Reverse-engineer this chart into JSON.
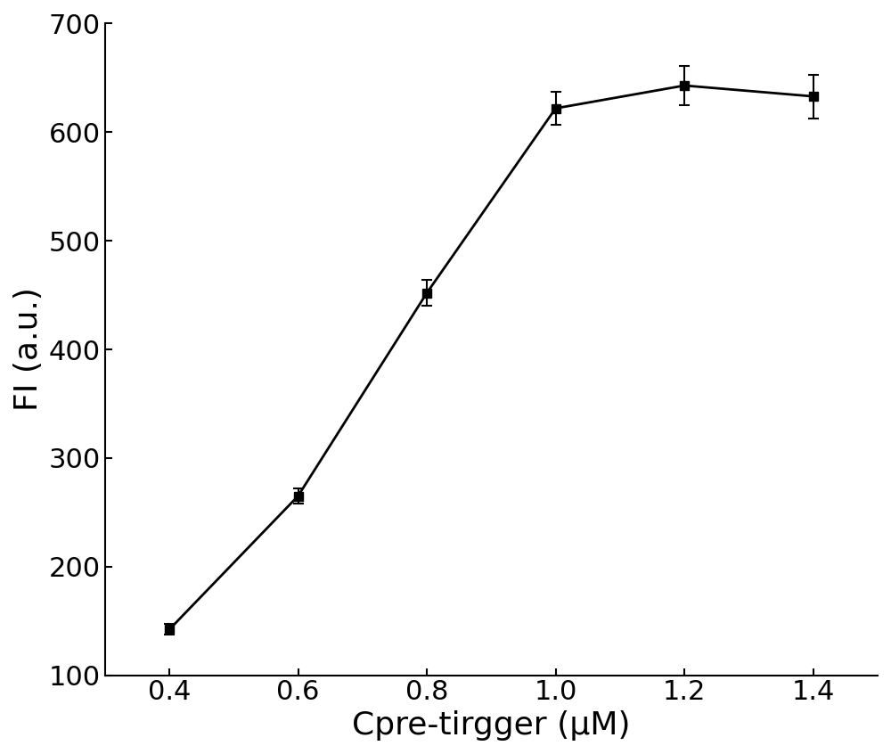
{
  "x": [
    0.4,
    0.6,
    0.8,
    1.0,
    1.2,
    1.4
  ],
  "y": [
    142,
    265,
    452,
    622,
    643,
    633
  ],
  "yerr": [
    5,
    7,
    12,
    15,
    18,
    20
  ],
  "xlabel": "Cpre-tirgger (μM)",
  "ylabel": "FI (a.u.)",
  "xlim": [
    0.3,
    1.5
  ],
  "ylim": [
    100,
    700
  ],
  "yticks": [
    100,
    200,
    300,
    400,
    500,
    600,
    700
  ],
  "xticks": [
    0.4,
    0.6,
    0.8,
    1.0,
    1.2,
    1.4
  ],
  "line_color": "#000000",
  "marker": "s",
  "markersize": 7,
  "linewidth": 2,
  "capsize": 4,
  "elinewidth": 1.5,
  "figure_bg": "#ffffff",
  "axes_bg": "#ffffff",
  "tick_label_fontsize": 22,
  "axis_label_fontsize": 26
}
